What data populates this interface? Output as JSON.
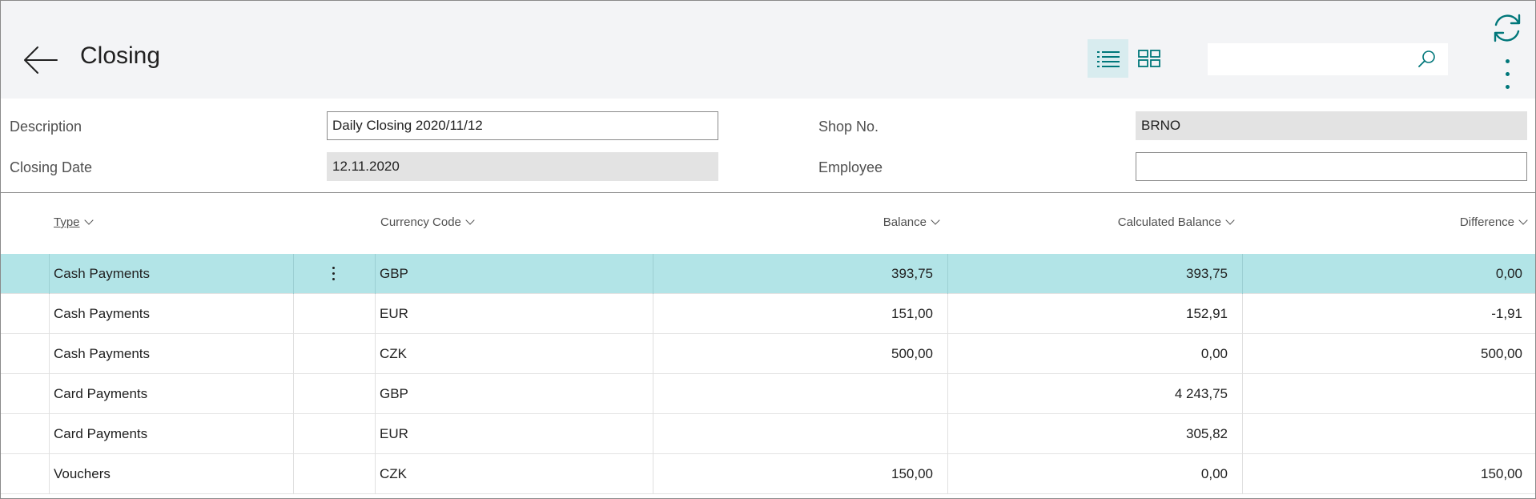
{
  "page": {
    "title": "Closing"
  },
  "search": {
    "placeholder": ""
  },
  "form": {
    "description_label": "Description",
    "description_value": "Daily Closing 2020/11/12",
    "closing_date_label": "Closing Date",
    "closing_date_value": "12.11.2020",
    "shop_no_label": "Shop No.",
    "shop_no_value": "BRNO",
    "employee_label": "Employee",
    "employee_value": ""
  },
  "table": {
    "columns": {
      "type": "Type",
      "currency_code": "Currency Code",
      "balance": "Balance",
      "calculated_balance": "Calculated Balance",
      "difference": "Difference"
    },
    "rows": [
      {
        "type": "Cash Payments",
        "currency": "GBP",
        "balance": "393,75",
        "calculated": "393,75",
        "difference": "0,00"
      },
      {
        "type": "Cash Payments",
        "currency": "EUR",
        "balance": "151,00",
        "calculated": "152,91",
        "difference": "-1,91"
      },
      {
        "type": "Cash Payments",
        "currency": "CZK",
        "balance": "500,00",
        "calculated": "0,00",
        "difference": "500,00"
      },
      {
        "type": "Card Payments",
        "currency": "GBP",
        "balance": "",
        "calculated": "4 243,75",
        "difference": ""
      },
      {
        "type": "Card Payments",
        "currency": "EUR",
        "balance": "",
        "calculated": "305,82",
        "difference": ""
      },
      {
        "type": "Vouchers",
        "currency": "CZK",
        "balance": "150,00",
        "calculated": "0,00",
        "difference": "150,00"
      }
    ]
  },
  "icons": {
    "back": "back-arrow-icon",
    "list_view": "list-view-icon",
    "tile_view": "tile-view-icon",
    "search": "search-icon",
    "refresh": "refresh-icon",
    "more": "more-vertical-icon",
    "row_menu": "row-menu-icon",
    "sort": "chevron-down-icon"
  },
  "colors": {
    "accent": "#00777a",
    "selected_row": "#b2e4e7",
    "header_background": "#f3f4f6",
    "readonly_field": "#e3e3e3"
  }
}
